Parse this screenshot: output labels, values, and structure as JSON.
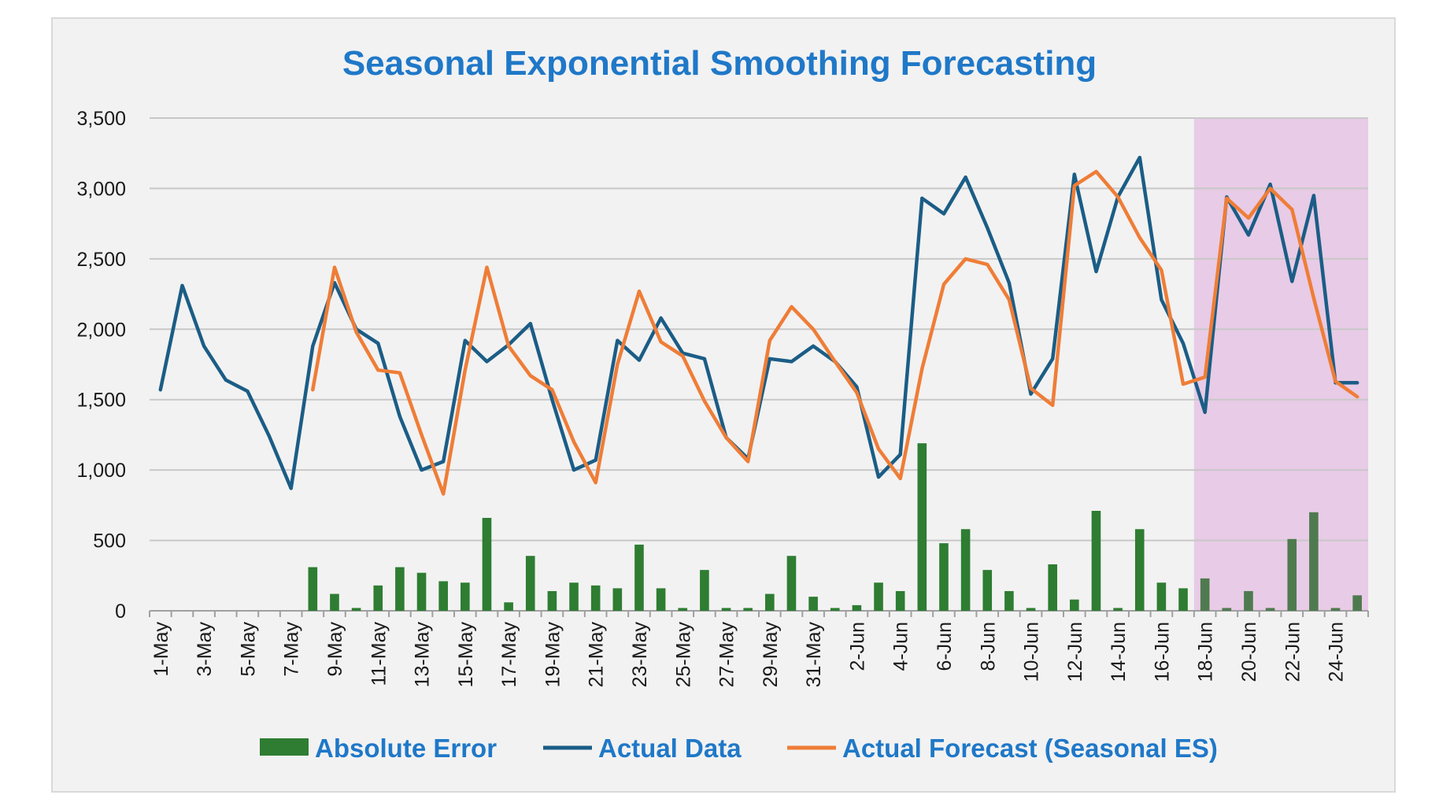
{
  "chart_data": {
    "type": "line",
    "title": "Seasonal Exponential Smoothing Forecasting",
    "xlabel": "",
    "ylabel": "",
    "ylim": [
      0,
      3500
    ],
    "yticks": [
      0,
      500,
      1000,
      1500,
      2000,
      2500,
      3000,
      3500
    ],
    "ytick_labels": [
      "0",
      "500",
      "1,000",
      "1,500",
      "2,000",
      "2,500",
      "3,000",
      "3,500"
    ],
    "grid": true,
    "legend_position": "bottom",
    "highlight": {
      "from": "18-Jun",
      "to": "25-Jun",
      "color": "#e8cbe6"
    },
    "categories": [
      "1-May",
      "2-May",
      "3-May",
      "4-May",
      "5-May",
      "6-May",
      "7-May",
      "8-May",
      "9-May",
      "10-May",
      "11-May",
      "12-May",
      "13-May",
      "14-May",
      "15-May",
      "16-May",
      "17-May",
      "18-May",
      "19-May",
      "20-May",
      "21-May",
      "22-May",
      "23-May",
      "24-May",
      "25-May",
      "26-May",
      "27-May",
      "28-May",
      "29-May",
      "30-May",
      "31-May",
      "1-Jun",
      "2-Jun",
      "3-Jun",
      "4-Jun",
      "5-Jun",
      "6-Jun",
      "7-Jun",
      "8-Jun",
      "9-Jun",
      "10-Jun",
      "11-Jun",
      "12-Jun",
      "13-Jun",
      "14-Jun",
      "15-Jun",
      "16-Jun",
      "17-Jun",
      "18-Jun",
      "19-Jun",
      "20-Jun",
      "21-Jun",
      "22-Jun",
      "23-Jun",
      "24-Jun",
      "25-Jun"
    ],
    "xtick_labels": [
      "1-May",
      "3-May",
      "5-May",
      "7-May",
      "9-May",
      "11-May",
      "13-May",
      "15-May",
      "17-May",
      "19-May",
      "21-May",
      "23-May",
      "25-May",
      "27-May",
      "29-May",
      "31-May",
      "2-Jun",
      "4-Jun",
      "6-Jun",
      "8-Jun",
      "10-Jun",
      "12-Jun",
      "14-Jun",
      "16-Jun",
      "18-Jun",
      "20-Jun",
      "22-Jun",
      "24-Jun"
    ],
    "series": [
      {
        "name": "Absolute Error",
        "type": "bar",
        "color": "#2e7d32",
        "values": [
          null,
          null,
          null,
          null,
          null,
          null,
          null,
          310,
          120,
          20,
          180,
          310,
          270,
          210,
          200,
          660,
          60,
          390,
          140,
          200,
          180,
          160,
          470,
          160,
          20,
          290,
          20,
          20,
          120,
          390,
          100,
          20,
          40,
          200,
          140,
          1190,
          480,
          580,
          290,
          140,
          20,
          330,
          80,
          710,
          20,
          580,
          200,
          160,
          230,
          20,
          140,
          20,
          510,
          700,
          20,
          110
        ]
      },
      {
        "name": "Actual Data",
        "type": "line",
        "color": "#1b5d86",
        "values": [
          1570,
          2310,
          1880,
          1640,
          1560,
          1240,
          870,
          1880,
          2330,
          2000,
          1900,
          1380,
          1000,
          1060,
          1920,
          1770,
          1890,
          2040,
          1500,
          1000,
          1070,
          1920,
          1780,
          2080,
          1830,
          1790,
          1230,
          1080,
          1790,
          1770,
          1880,
          1770,
          1590,
          950,
          1110,
          2930,
          2820,
          3080,
          2720,
          2330,
          1540,
          1790,
          3100,
          2410,
          2940,
          3220,
          2210,
          1900,
          1410,
          2940,
          2670,
          3030,
          2340,
          2950,
          1620,
          1620
        ]
      },
      {
        "name": "Actual Forecast (Seasonal ES)",
        "type": "line",
        "color": "#ef7d37",
        "values": [
          null,
          null,
          null,
          null,
          null,
          null,
          null,
          1570,
          2440,
          1980,
          1710,
          1690,
          1250,
          830,
          1710,
          2440,
          1880,
          1670,
          1570,
          1200,
          910,
          1750,
          2270,
          1910,
          1810,
          1490,
          1230,
          1060,
          1920,
          2160,
          2000,
          1770,
          1550,
          1150,
          940,
          1720,
          2320,
          2500,
          2460,
          2210,
          1580,
          1460,
          3020,
          3120,
          2940,
          2650,
          2420,
          1610,
          1660,
          2930,
          2790,
          3000,
          2850,
          2220,
          1630,
          1520
        ]
      }
    ]
  }
}
